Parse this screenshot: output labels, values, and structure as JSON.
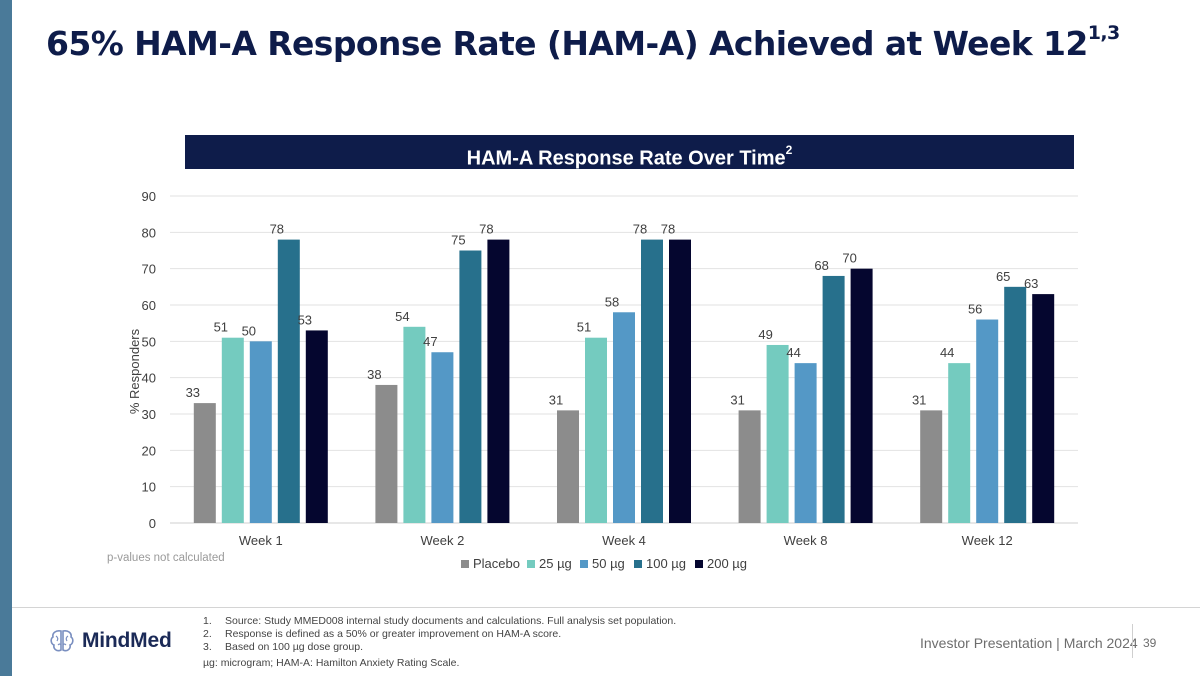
{
  "slide": {
    "title": "65% HAM-A Response Rate (HAM-A) Achieved at Week 12",
    "title_superscript": "1,3",
    "chart_heading": "HAM-A Response Rate Over Time",
    "chart_heading_superscript": "2",
    "p_value_note": "p-values not calculated"
  },
  "chart_data": {
    "type": "bar",
    "title": "HAM-A Response Rate Over Time",
    "xlabel": "",
    "ylabel": "% Responders",
    "ylim": [
      0,
      90
    ],
    "yticks": [
      0,
      10,
      20,
      30,
      40,
      50,
      60,
      70,
      80,
      90
    ],
    "grid": true,
    "legend_position": "bottom",
    "categories": [
      "Week 1",
      "Week 2",
      "Week 4",
      "Week 8",
      "Week 12"
    ],
    "series": [
      {
        "name": "Placebo",
        "color": "#8c8c8c",
        "values": [
          33,
          38,
          31,
          31,
          31
        ]
      },
      {
        "name": "25 µg",
        "color": "#74cbbf",
        "values": [
          51,
          54,
          51,
          49,
          44
        ]
      },
      {
        "name": "50 µg",
        "color": "#5498c6",
        "values": [
          50,
          47,
          58,
          44,
          56
        ]
      },
      {
        "name": "100 µg",
        "color": "#27708c",
        "values": [
          78,
          75,
          78,
          68,
          65
        ]
      },
      {
        "name": "200 µg",
        "color": "#05062f",
        "values": [
          53,
          78,
          78,
          70,
          63
        ]
      }
    ]
  },
  "footnotes": [
    {
      "num": "1.",
      "text": "Source: Study MMED008 internal study documents and calculations. Full analysis set population."
    },
    {
      "num": "2.",
      "text": "Response is defined as a 50% or greater improvement on HAM-A score."
    },
    {
      "num": "3.",
      "text": "Based on 100 µg dose group."
    }
  ],
  "abbreviations": "µg: microgram; HAM-A: Hamilton Anxiety Rating Scale.",
  "footer": {
    "brand": "MindMed",
    "logo_icon": "brain-icon",
    "presentation": "Investor Presentation | March 2024",
    "page_number": "39"
  }
}
